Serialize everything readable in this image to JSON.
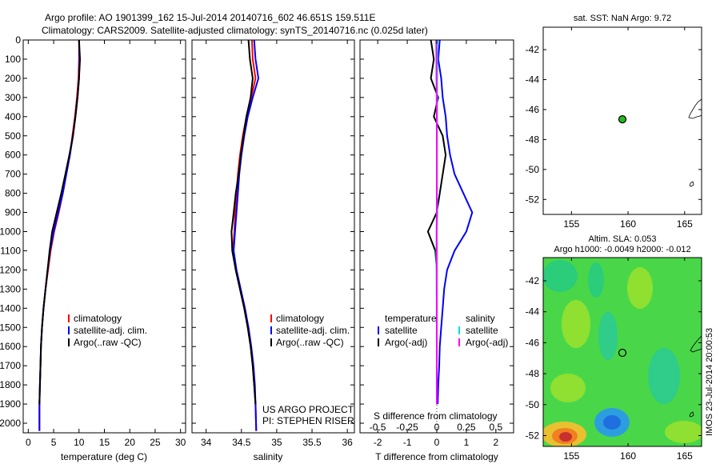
{
  "header": {
    "title_line1": "Argo profile: AO 1901399_162 15-Jul-2014 20140716_602 46.651S 159.511E",
    "title_line2": "Climatology: CARS2009. Satellite-adjusted climatology: synTS_20140716.nc (0.025d later)"
  },
  "colors": {
    "climatology": "#ff0000",
    "satellite_adj_clim": "#0000ff",
    "argo": "#000000",
    "salinity_satellite": "#00e0e0",
    "salinity_argo": "#ff00ff",
    "float_marker": "#22bb22"
  },
  "watermark": "IMOS 23-Jul-2014 20:00:53",
  "chart_data": [
    {
      "id": "temperature",
      "type": "line",
      "xlabel": "temperature (deg C)",
      "ylabel": "",
      "xlim": [
        -1,
        31
      ],
      "ylim": [
        2050,
        0
      ],
      "xticks": [
        0,
        5,
        10,
        15,
        20,
        25,
        30
      ],
      "yticks": [
        0,
        100,
        200,
        300,
        400,
        500,
        600,
        700,
        800,
        900,
        1000,
        1100,
        1200,
        1300,
        1400,
        1500,
        1600,
        1700,
        1800,
        1900,
        2000
      ],
      "legend": {
        "position": "middle-right",
        "entries": [
          "climatology",
          "satellite-adj. clim.",
          "Argo(..raw -QC)"
        ]
      },
      "series": [
        {
          "name": "climatology",
          "color": "#ff0000",
          "x": [
            10,
            10,
            9.9,
            9.6,
            9.2,
            8.7,
            8.2,
            7.5,
            6.8,
            6.0,
            5.1,
            4.4,
            3.9,
            3.4,
            3.0,
            2.7,
            2.5,
            2.4,
            2.3,
            2.2,
            2.2
          ],
          "y": [
            0,
            100,
            200,
            300,
            400,
            500,
            600,
            700,
            800,
            900,
            1000,
            1100,
            1200,
            1300,
            1400,
            1500,
            1600,
            1700,
            1800,
            1900,
            2040
          ]
        },
        {
          "name": "satellite-adj. clim.",
          "color": "#0000ff",
          "x": [
            10,
            10.1,
            10.0,
            9.7,
            9.3,
            8.8,
            8.2,
            7.5,
            6.8,
            5.9,
            5.0,
            4.3,
            3.8,
            3.4,
            3.0,
            2.7,
            2.5,
            2.4,
            2.3,
            2.2,
            2.2
          ],
          "y": [
            0,
            100,
            200,
            300,
            400,
            500,
            600,
            700,
            800,
            900,
            1000,
            1100,
            1200,
            1300,
            1400,
            1500,
            1600,
            1700,
            1800,
            1900,
            2040
          ]
        },
        {
          "name": "Argo(..raw -QC)",
          "color": "#000000",
          "x": [
            10,
            10.2,
            10.0,
            9.7,
            9.3,
            8.8,
            8.1,
            7.3,
            6.5,
            5.6,
            4.7,
            4.2,
            3.8,
            3.4,
            3.0,
            2.7,
            2.5,
            2.4,
            2.3,
            2.2
          ],
          "y": [
            0,
            100,
            200,
            300,
            400,
            500,
            600,
            700,
            800,
            900,
            1000,
            1100,
            1200,
            1300,
            1400,
            1500,
            1600,
            1700,
            1800,
            1900
          ]
        }
      ]
    },
    {
      "id": "salinity",
      "type": "line",
      "xlabel": "salinity",
      "ylabel": "",
      "xlim": [
        33.8,
        36.1
      ],
      "ylim": [
        2050,
        0
      ],
      "xticks": [
        34,
        34.5,
        35,
        35.5,
        36
      ],
      "xticklabels": [
        "34",
        "34.5",
        "35",
        "35.5",
        "36"
      ],
      "legend": {
        "position": "middle-right",
        "entries": [
          "climatology",
          "satellite-adj. clim.",
          "Argo(..raw -QC)"
        ]
      },
      "annotation": [
        "US ARGO PROJECT",
        "PI: STEPHEN RISER"
      ],
      "series": [
        {
          "name": "climatology",
          "color": "#ff0000",
          "x": [
            34.65,
            34.66,
            34.7,
            34.64,
            34.57,
            34.52,
            34.48,
            34.45,
            34.43,
            34.41,
            34.4,
            34.38,
            34.42,
            34.48,
            34.54,
            34.59,
            34.63,
            34.66,
            34.68,
            34.7,
            34.71
          ],
          "y": [
            0,
            100,
            200,
            300,
            400,
            500,
            600,
            700,
            800,
            900,
            1000,
            1100,
            1200,
            1300,
            1400,
            1500,
            1600,
            1700,
            1800,
            1900,
            2040
          ]
        },
        {
          "name": "satellite-adj. clim.",
          "color": "#0000ff",
          "x": [
            34.68,
            34.7,
            34.74,
            34.66,
            34.59,
            34.54,
            34.5,
            34.47,
            34.45,
            34.43,
            34.41,
            34.39,
            34.43,
            34.49,
            34.55,
            34.6,
            34.64,
            34.67,
            34.69,
            34.7,
            34.71
          ],
          "y": [
            0,
            100,
            200,
            300,
            400,
            500,
            600,
            700,
            800,
            900,
            1000,
            1100,
            1200,
            1300,
            1400,
            1500,
            1600,
            1700,
            1800,
            1900,
            2040
          ]
        },
        {
          "name": "Argo(..raw -QC)",
          "color": "#000000",
          "x": [
            34.6,
            34.62,
            34.66,
            34.63,
            34.57,
            34.53,
            34.49,
            34.46,
            34.42,
            34.39,
            34.36,
            34.37,
            34.42,
            34.48,
            34.54,
            34.59,
            34.63,
            34.66,
            34.68,
            34.7
          ],
          "y": [
            0,
            100,
            200,
            300,
            400,
            500,
            600,
            700,
            800,
            900,
            1000,
            1100,
            1200,
            1300,
            1400,
            1500,
            1600,
            1700,
            1800,
            1900
          ]
        }
      ]
    },
    {
      "id": "difference",
      "type": "line",
      "xlabel": "T difference from climatology",
      "xlabel_top": "S difference from climatology",
      "xlim": [
        -2.6,
        2.6
      ],
      "ylim": [
        2050,
        0
      ],
      "xticks": [
        -2,
        -1,
        0,
        1,
        2
      ],
      "xticklabels": [
        "-2",
        "-1",
        "0",
        "1",
        "2"
      ],
      "xticks_top": [
        -0.5,
        -0.25,
        0,
        0.25,
        0.5
      ],
      "xticklabels_top": [
        "-0.5",
        "-0.25",
        "0",
        "0.25",
        "0.5"
      ],
      "legend": {
        "position": "middle",
        "headers": [
          "temperature",
          "salinity"
        ],
        "entries": [
          "satellite",
          "Argo(-adj)",
          "satellite",
          "Argo(-adj)"
        ]
      },
      "series": [
        {
          "name": "temperature satellite",
          "color": "#0000ff",
          "x": [
            0.1,
            0.05,
            0.15,
            0.2,
            0.3,
            0.35,
            0.45,
            0.6,
            0.9,
            1.2,
            1.0,
            0.6,
            0.35,
            0.25,
            0.2,
            0.15,
            0.1,
            0.08,
            0.05,
            0.03
          ],
          "y": [
            0,
            100,
            200,
            300,
            400,
            500,
            600,
            700,
            800,
            900,
            1000,
            1100,
            1200,
            1300,
            1400,
            1500,
            1600,
            1700,
            1800,
            1900
          ]
        },
        {
          "name": "temperature Argo(-adj)",
          "color": "#000000",
          "x": [
            -0.2,
            -0.1,
            -0.2,
            0.05,
            -0.1,
            0.2,
            0.3,
            0.2,
            0.1,
            0.0,
            -0.3,
            -0.05,
            0.0,
            0.0,
            0.0,
            0.0,
            0.0,
            0.0,
            0.0,
            0.0
          ],
          "y": [
            0,
            100,
            200,
            300,
            400,
            500,
            600,
            700,
            800,
            900,
            1000,
            1100,
            1200,
            1300,
            1400,
            1500,
            1600,
            1700,
            1800,
            1900
          ]
        },
        {
          "name": "salinity satellite",
          "color": "#00e0e0",
          "x": [
            0.08,
            0.06,
            0.05,
            0.04,
            0.03,
            0.02,
            0.0,
            0.0,
            0.02,
            0.08,
            -0.02,
            -0.05,
            -0.04,
            -0.03,
            -0.02,
            -0.02,
            -0.01,
            -0.01,
            -0.01,
            0.0
          ],
          "y": [
            0,
            100,
            200,
            300,
            400,
            500,
            600,
            700,
            800,
            900,
            1000,
            1100,
            1200,
            1300,
            1400,
            1500,
            1600,
            1700,
            1800,
            1900
          ]
        },
        {
          "name": "salinity Argo(-adj)",
          "color": "#ff00ff",
          "x": [
            -0.08,
            -0.05,
            -0.04,
            -0.02,
            0.0,
            0.0,
            0.01,
            0.01,
            0.0,
            0.0,
            -0.02,
            0.0,
            0.0,
            0.0,
            0.0,
            0.0,
            0.0,
            0.0,
            0.0,
            0.0
          ],
          "y": [
            0,
            100,
            200,
            300,
            400,
            500,
            600,
            700,
            800,
            900,
            1000,
            1100,
            1200,
            1300,
            1400,
            1500,
            1600,
            1700,
            1800,
            1900
          ]
        }
      ]
    },
    {
      "id": "sst_map",
      "type": "scatter",
      "title": "sat. SST: NaN Argo: 9.72",
      "xlim": [
        152.5,
        166.5
      ],
      "ylim": [
        -53,
        -40.5
      ],
      "xticks": [
        155,
        160,
        165
      ],
      "yticks": [
        -42,
        -44,
        -46,
        -48,
        -50,
        -52
      ],
      "points": [
        {
          "lon": 159.5,
          "lat": -46.65
        }
      ]
    },
    {
      "id": "sla_map",
      "type": "heatmap",
      "title": "Altim. SLA: 0.053",
      "subtitle": "Argo h1000: -0.0049 h2000: -0.012",
      "xlim": [
        152.5,
        166.5
      ],
      "ylim": [
        -52.7,
        -40.5
      ],
      "xticks": [
        155,
        160,
        165
      ],
      "yticks": [
        -42,
        -44,
        -46,
        -48,
        -50,
        -52
      ],
      "points": [
        {
          "lon": 159.5,
          "lat": -46.65
        }
      ]
    }
  ]
}
